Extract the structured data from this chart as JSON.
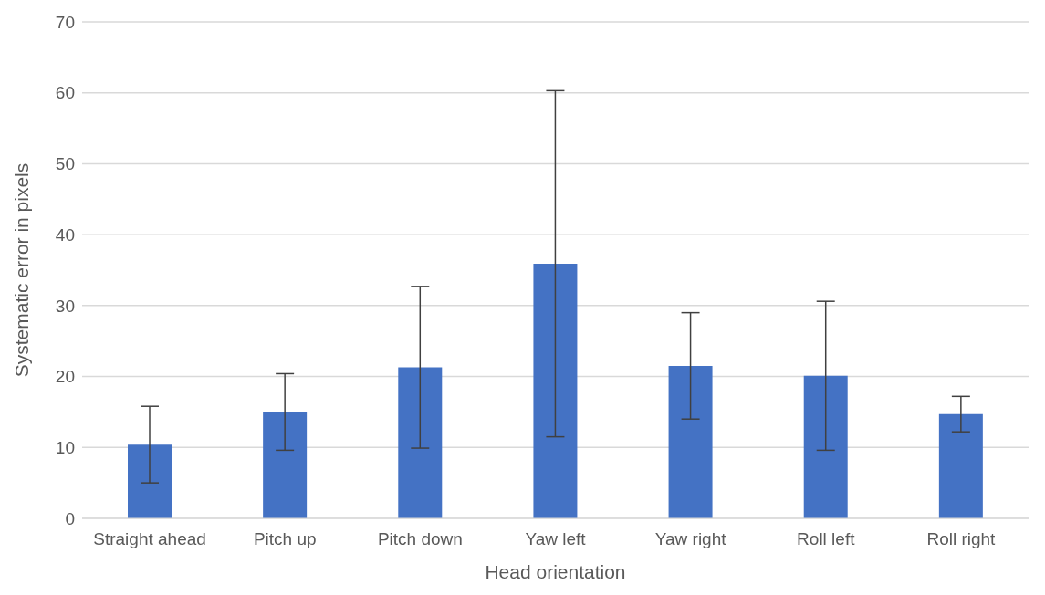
{
  "chart_data": {
    "type": "bar",
    "xlabel": "Head orientation",
    "ylabel": "Systematic error in pixels",
    "categories": [
      "Straight ahead",
      "Pitch up",
      "Pitch down",
      "Yaw left",
      "Yaw right",
      "Roll left",
      "Roll right"
    ],
    "values": [
      10.4,
      15.0,
      21.3,
      35.9,
      21.5,
      20.1,
      14.7
    ],
    "errors": [
      5.4,
      5.4,
      11.4,
      24.4,
      7.5,
      10.5,
      2.5
    ],
    "color": "#4472c4",
    "ylim": [
      0,
      70
    ],
    "yticks": [
      0,
      10,
      20,
      30,
      40,
      50,
      60,
      70
    ],
    "grid": "y"
  }
}
